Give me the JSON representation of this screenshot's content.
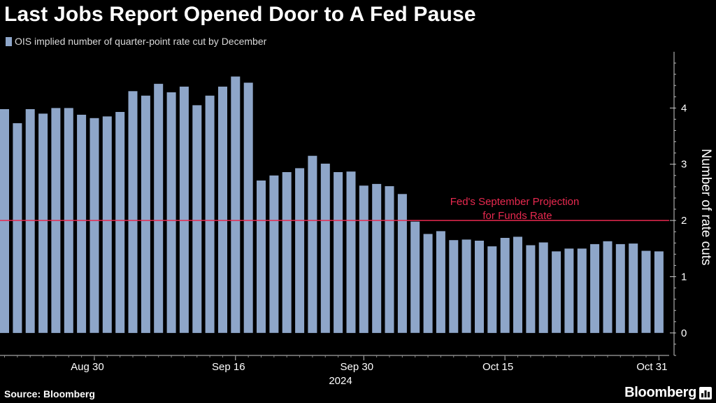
{
  "chart_data": {
    "type": "bar",
    "title": "Last Jobs Report Opened Door to A Fed Pause",
    "legend": [
      "OIS implied number of quarter-point rate cut by December"
    ],
    "ylabel": "Number of rate cuts",
    "ylim": [
      -0.4,
      5
    ],
    "yticks": [
      0,
      1,
      2,
      3,
      4
    ],
    "xticks": [
      "Aug 30",
      "Sep 16",
      "Sep 30",
      "Oct 15",
      "Oct 31"
    ],
    "xsublabel": "2024",
    "reference_line": {
      "value": 2,
      "label_line1": "Fed's September Projection",
      "label_line2": "for Funds Rate",
      "color": "#e8294f"
    },
    "bar_color": "#8ea6c9",
    "values": [
      3.98,
      3.73,
      3.98,
      3.9,
      4.0,
      4.0,
      3.88,
      3.82,
      3.85,
      3.93,
      4.3,
      4.22,
      4.43,
      4.28,
      4.38,
      4.05,
      4.22,
      4.38,
      4.56,
      4.45,
      2.71,
      2.8,
      2.86,
      2.93,
      3.15,
      3.01,
      2.86,
      2.87,
      2.62,
      2.65,
      2.61,
      2.47,
      1.98,
      1.76,
      1.81,
      1.65,
      1.66,
      1.64,
      1.54,
      1.69,
      1.71,
      1.56,
      1.61,
      1.45,
      1.5,
      1.5,
      1.58,
      1.63,
      1.58,
      1.59,
      1.46,
      1.45
    ]
  },
  "footer": {
    "source": "Source: Bloomberg",
    "brand": "Bloomberg"
  }
}
